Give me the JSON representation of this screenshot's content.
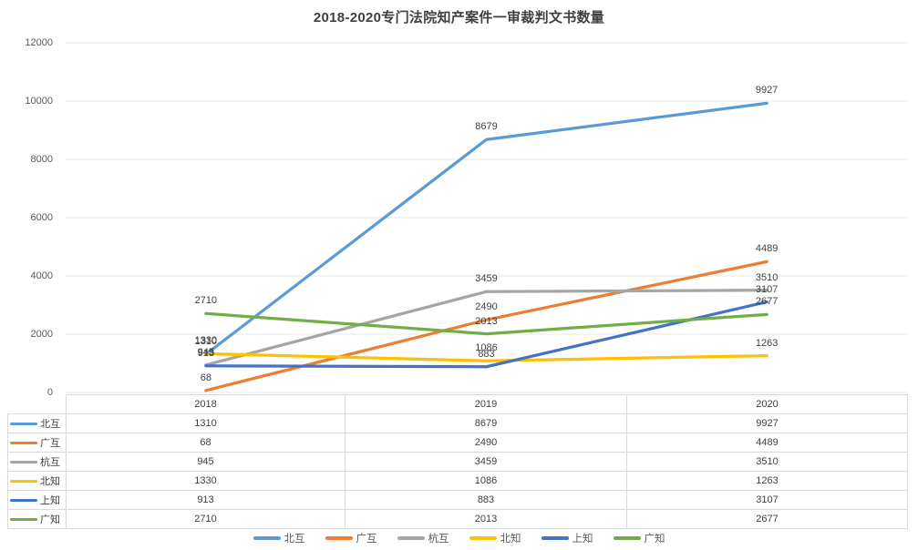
{
  "chart_data": {
    "type": "line",
    "title": "2018-2020专门法院知产案件一审裁判文书数量",
    "categories": [
      "2018",
      "2019",
      "2020"
    ],
    "series": [
      {
        "name": "北互",
        "color": "#5B9BD5",
        "values": [
          1310,
          8679,
          9927
        ]
      },
      {
        "name": "广互",
        "color": "#ED7D31",
        "values": [
          68,
          2490,
          4489
        ]
      },
      {
        "name": "杭互",
        "color": "#A5A5A5",
        "values": [
          945,
          3459,
          3510
        ]
      },
      {
        "name": "北知",
        "color": "#FFC000",
        "values": [
          1330,
          1086,
          1263
        ]
      },
      {
        "name": "上知",
        "color": "#4472C4",
        "values": [
          913,
          883,
          3107
        ]
      },
      {
        "name": "广知",
        "color": "#70AD47",
        "values": [
          2710,
          2013,
          2677
        ]
      }
    ],
    "xlabel": "",
    "ylabel": "",
    "ylim": [
      0,
      12000
    ],
    "yticks": [
      0,
      2000,
      4000,
      6000,
      8000,
      10000,
      12000
    ],
    "grid": "horizontal",
    "legend_position": "bottom",
    "data_labels_shown": true,
    "data_table_shown": true
  },
  "colors": {
    "grid_line": "#E7E7E7",
    "table_border": "#D9D9D9",
    "title_text": "#404040",
    "axis_text": "#595959",
    "data_label_text": "#404040"
  }
}
